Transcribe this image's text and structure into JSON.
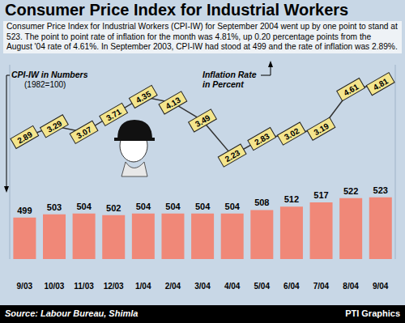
{
  "chart_data": {
    "type": "bar",
    "title": "Consumer Price Index for Industrial Workers",
    "subtitle": "Consumer Price Index for Industrial Workers (CPI-IW) for September 2004 went up by one point to stand at 523. The point to point rate of inflation for the month was 4.81%, up 0.20 percentage points from the August '04 rate of 4.61%. In September 2003, CPI-IW had stood at 499 and the rate of inflation was 2.89%.",
    "annotations": [
      "(1982=100)",
      "Source: Labour Bureau, Shimla",
      "PTI Graphics"
    ],
    "categories": [
      "9/03",
      "10/03",
      "11/03",
      "12/03",
      "1/04",
      "2/04",
      "3/04",
      "4/04",
      "5/04",
      "6/04",
      "7/04",
      "8/04",
      "9/04"
    ],
    "series": [
      {
        "name": "CPI-IW in Numbers",
        "type": "bar",
        "color": "#f08878",
        "values": [
          499,
          503,
          504,
          502,
          504,
          504,
          504,
          504,
          508,
          512,
          517,
          522,
          523
        ]
      },
      {
        "name": "Inflation Rate in Percent",
        "type": "line",
        "axis": "y2",
        "color": "#333333",
        "values": [
          2.89,
          3.29,
          3.07,
          3.71,
          4.35,
          4.13,
          3.49,
          2.23,
          2.83,
          3.02,
          3.19,
          4.61,
          4.81
        ]
      }
    ],
    "ylim": [
      450,
      680
    ],
    "yticks": [
      450,
      680
    ],
    "y2lim": [
      -1.5,
      5.5
    ],
    "y2ticks": [
      -1.5,
      5.5
    ],
    "tick_labels": "x",
    "data_labels": true,
    "grid": false
  }
}
